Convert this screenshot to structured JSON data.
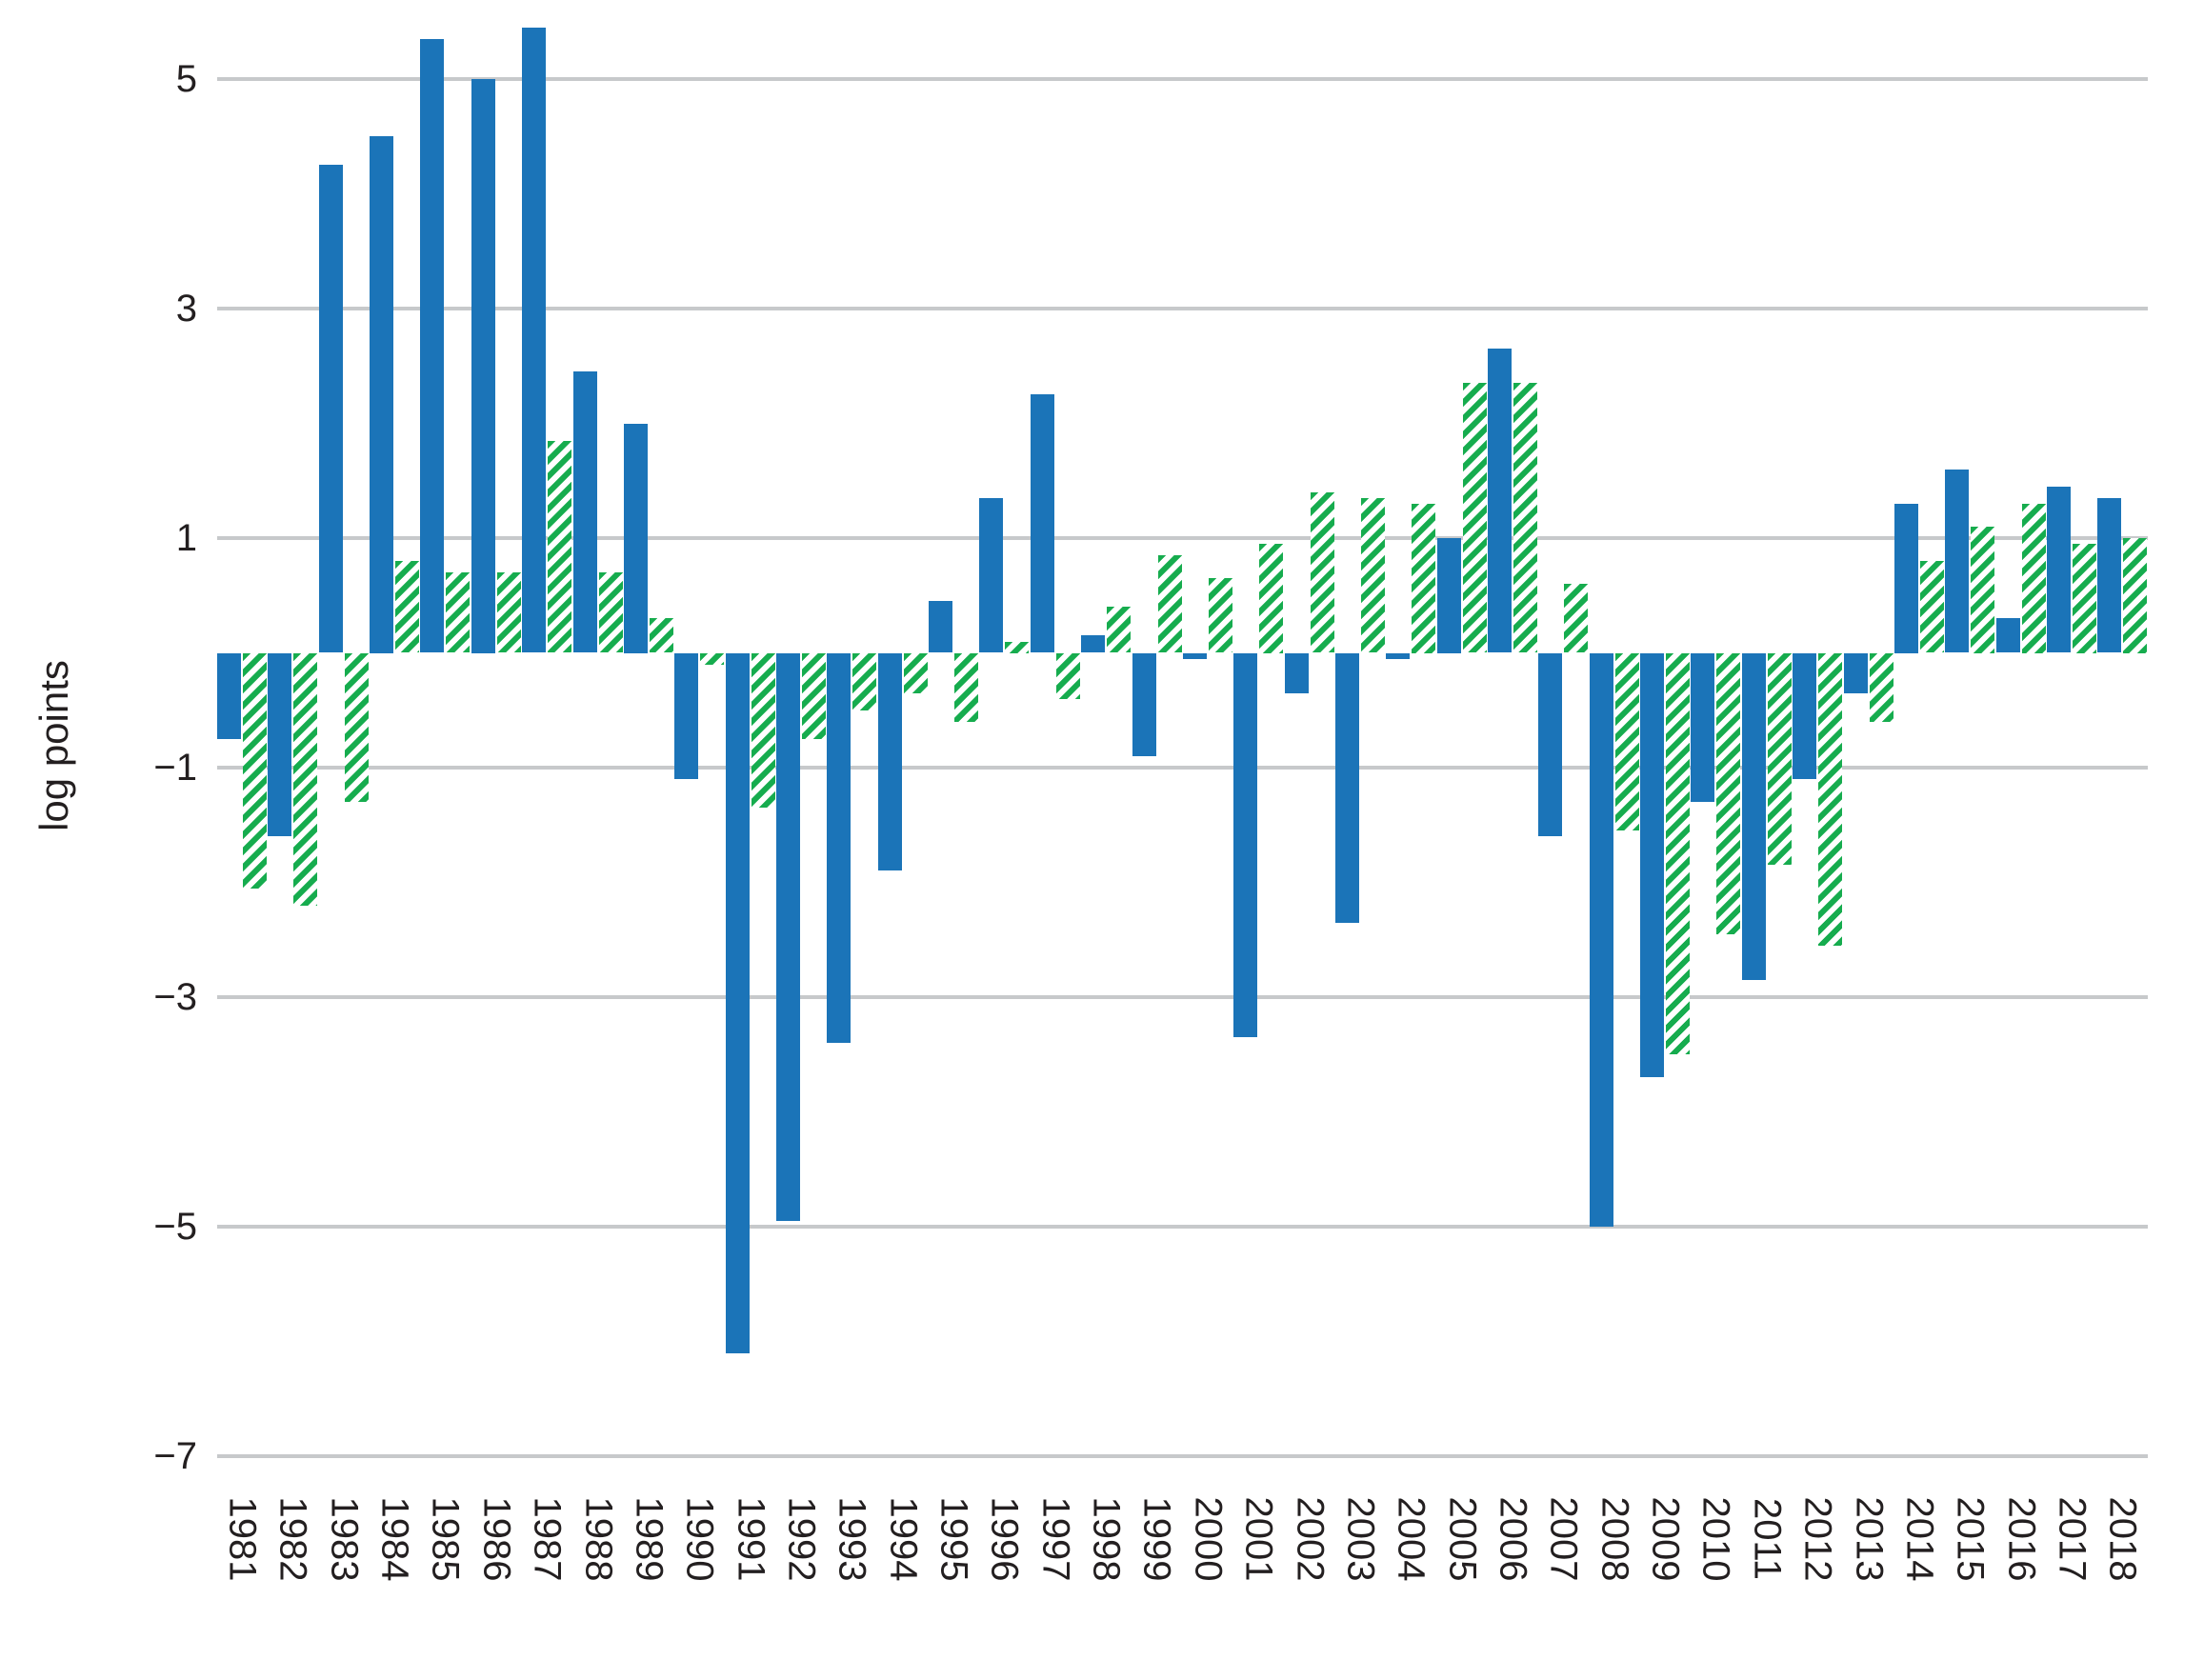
{
  "chart_data": {
    "type": "bar",
    "title": "",
    "xlabel": "",
    "ylabel": "log points",
    "categories": [
      "1981",
      "1982",
      "1983",
      "1984",
      "1985",
      "1986",
      "1987",
      "1988",
      "1989",
      "1990",
      "1991",
      "1992",
      "1993",
      "1994",
      "1995",
      "1996",
      "1997",
      "1998",
      "1999",
      "2000",
      "2001",
      "2002",
      "2003",
      "2004",
      "2005",
      "2006",
      "2007",
      "2008",
      "2009",
      "2010",
      "2011",
      "2012",
      "2013",
      "2014",
      "2015",
      "2016",
      "2017",
      "2018"
    ],
    "series": [
      {
        "name": "blue-solid",
        "color": "#1b74b8",
        "pattern": "solid",
        "values": [
          -0.75,
          -1.6,
          4.25,
          4.5,
          5.35,
          5.0,
          5.45,
          2.45,
          2.0,
          -1.1,
          -6.1,
          -4.95,
          -3.4,
          -1.9,
          0.45,
          1.35,
          2.25,
          0.15,
          -0.9,
          -0.05,
          -3.35,
          -0.35,
          -2.35,
          -0.05,
          1.0,
          2.65,
          -1.6,
          -5.0,
          -3.7,
          -1.3,
          -2.85,
          -1.1,
          -0.35,
          1.3,
          1.6,
          0.3,
          1.45,
          1.35
        ]
      },
      {
        "name": "green-hatched",
        "color": "#16ac4e",
        "pattern": "diagonal-hatch",
        "values": [
          -2.05,
          -2.2,
          -1.3,
          0.8,
          0.7,
          0.7,
          1.85,
          0.7,
          0.3,
          -0.1,
          -1.35,
          -0.75,
          -0.5,
          -0.35,
          -0.6,
          0.1,
          -0.4,
          0.4,
          0.85,
          0.65,
          0.95,
          1.4,
          1.35,
          1.3,
          2.35,
          2.35,
          0.6,
          -1.55,
          -3.5,
          -2.45,
          -1.85,
          -2.55,
          -0.6,
          0.8,
          1.1,
          1.3,
          0.95,
          1.0
        ]
      }
    ],
    "yticks": [
      5,
      3,
      1,
      -1,
      -3,
      -5,
      -7
    ],
    "ylim": [
      -7.3,
      5.7
    ],
    "grid": "horizontal-only",
    "legend": "none",
    "grid_color": "#c7c9cb",
    "text_color": "#231f20"
  }
}
